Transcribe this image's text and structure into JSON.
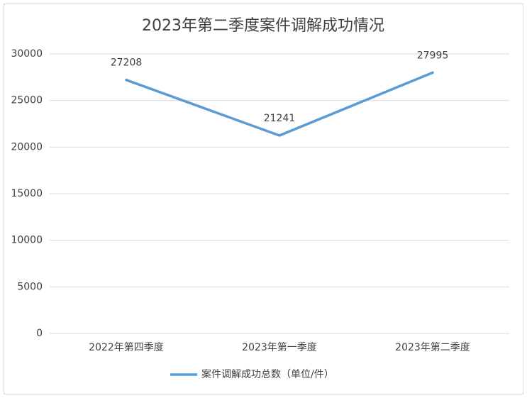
{
  "chart_data": {
    "type": "line",
    "title": "2023年第二季度案件调解成功情况",
    "categories": [
      "2022年第四季度",
      "2023年第一季度",
      "2023年第二季度"
    ],
    "series": [
      {
        "name": "案件调解成功总数（单位/件）",
        "color": "#5b9bd5",
        "values": [
          27208,
          21241,
          27995
        ]
      }
    ],
    "ylim": [
      0,
      30000
    ],
    "yticks": [
      0,
      5000,
      10000,
      15000,
      20000,
      25000,
      30000
    ],
    "grid": true,
    "legend": "bottom",
    "data_labels": true
  }
}
